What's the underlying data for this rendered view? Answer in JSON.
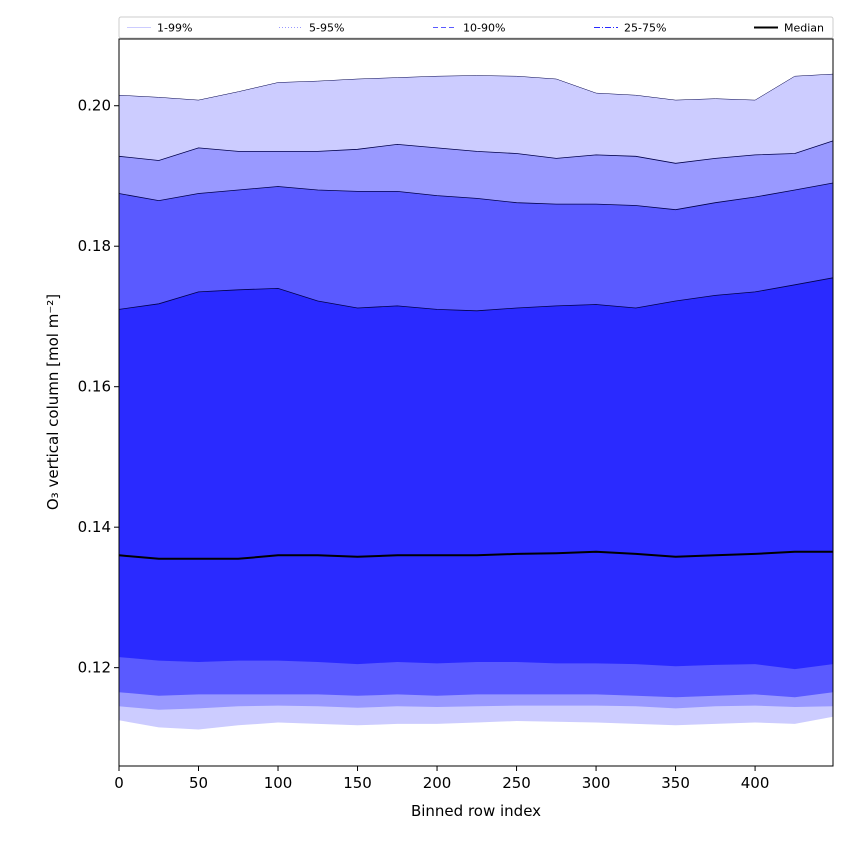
{
  "chart_data": {
    "type": "area",
    "xlabel": "Binned row index",
    "ylabel": "O₃ vertical column [mol m⁻²]",
    "xlim": [
      0,
      449
    ],
    "ylim": [
      0.106,
      0.2095
    ],
    "x_ticks": [
      "0",
      "50",
      "100",
      "150",
      "200",
      "250",
      "300",
      "350",
      "400"
    ],
    "y_ticks": [
      "0.12",
      "0.14",
      "0.16",
      "0.18",
      "0.20"
    ],
    "grid": false,
    "legend_position": "top",
    "x": [
      0,
      25,
      50,
      75,
      100,
      125,
      150,
      175,
      200,
      225,
      250,
      275,
      300,
      325,
      350,
      375,
      400,
      425,
      449
    ],
    "bands": [
      {
        "name": "1-99%",
        "color": "#ccccff",
        "line_style": "solid",
        "lower": [
          0.1125,
          0.1115,
          0.1112,
          0.1118,
          0.1122,
          0.112,
          0.1118,
          0.112,
          0.112,
          0.1122,
          0.1124,
          0.1123,
          0.1122,
          0.112,
          0.1118,
          0.112,
          0.1122,
          0.112,
          0.113
        ],
        "upper": [
          0.2015,
          0.2012,
          0.2008,
          0.202,
          0.2033,
          0.2035,
          0.2038,
          0.204,
          0.2042,
          0.2043,
          0.2042,
          0.2038,
          0.2018,
          0.2015,
          0.2008,
          0.201,
          0.2008,
          0.2042,
          0.2045
        ]
      },
      {
        "name": "5-95%",
        "color": "#9999ff",
        "line_style": "dotted",
        "lower": [
          0.1145,
          0.114,
          0.1142,
          0.1145,
          0.1146,
          0.1145,
          0.1143,
          0.1145,
          0.1144,
          0.1145,
          0.1146,
          0.1146,
          0.1146,
          0.1145,
          0.1142,
          0.1145,
          0.1146,
          0.1144,
          0.1145
        ],
        "upper": [
          0.1928,
          0.1922,
          0.194,
          0.1935,
          0.1935,
          0.1935,
          0.1938,
          0.1945,
          0.194,
          0.1935,
          0.1932,
          0.1925,
          0.193,
          0.1928,
          0.1918,
          0.1925,
          0.193,
          0.1932,
          0.195
        ]
      },
      {
        "name": "10-90%",
        "color": "#5a5aff",
        "line_style": "dashed",
        "lower": [
          0.1165,
          0.116,
          0.1162,
          0.1162,
          0.1162,
          0.1162,
          0.116,
          0.1162,
          0.116,
          0.1162,
          0.1162,
          0.1162,
          0.1162,
          0.116,
          0.1158,
          0.116,
          0.1162,
          0.1158,
          0.1165
        ],
        "upper": [
          0.1875,
          0.1865,
          0.1875,
          0.188,
          0.1885,
          0.188,
          0.1878,
          0.1878,
          0.1872,
          0.1868,
          0.1862,
          0.186,
          0.186,
          0.1858,
          0.1852,
          0.1862,
          0.187,
          0.188,
          0.189
        ]
      },
      {
        "name": "25-75%",
        "color": "#2a2aff",
        "line_style": "dashdot",
        "lower": [
          0.1215,
          0.121,
          0.1208,
          0.121,
          0.121,
          0.1208,
          0.1205,
          0.1208,
          0.1206,
          0.1208,
          0.1208,
          0.1206,
          0.1206,
          0.1205,
          0.1202,
          0.1204,
          0.1205,
          0.1198,
          0.1205
        ],
        "upper": [
          0.171,
          0.1718,
          0.1735,
          0.1738,
          0.174,
          0.1722,
          0.1712,
          0.1715,
          0.171,
          0.1708,
          0.1712,
          0.1715,
          0.1717,
          0.1712,
          0.1722,
          0.173,
          0.1735,
          0.1745,
          0.1755
        ]
      }
    ],
    "series": [
      {
        "name": "Median",
        "color": "#000000",
        "values": [
          0.136,
          0.1355,
          0.1355,
          0.1355,
          0.136,
          0.136,
          0.1358,
          0.136,
          0.136,
          0.136,
          0.1362,
          0.1363,
          0.1365,
          0.1362,
          0.1358,
          0.136,
          0.1362,
          0.1365,
          0.1365
        ]
      }
    ]
  }
}
